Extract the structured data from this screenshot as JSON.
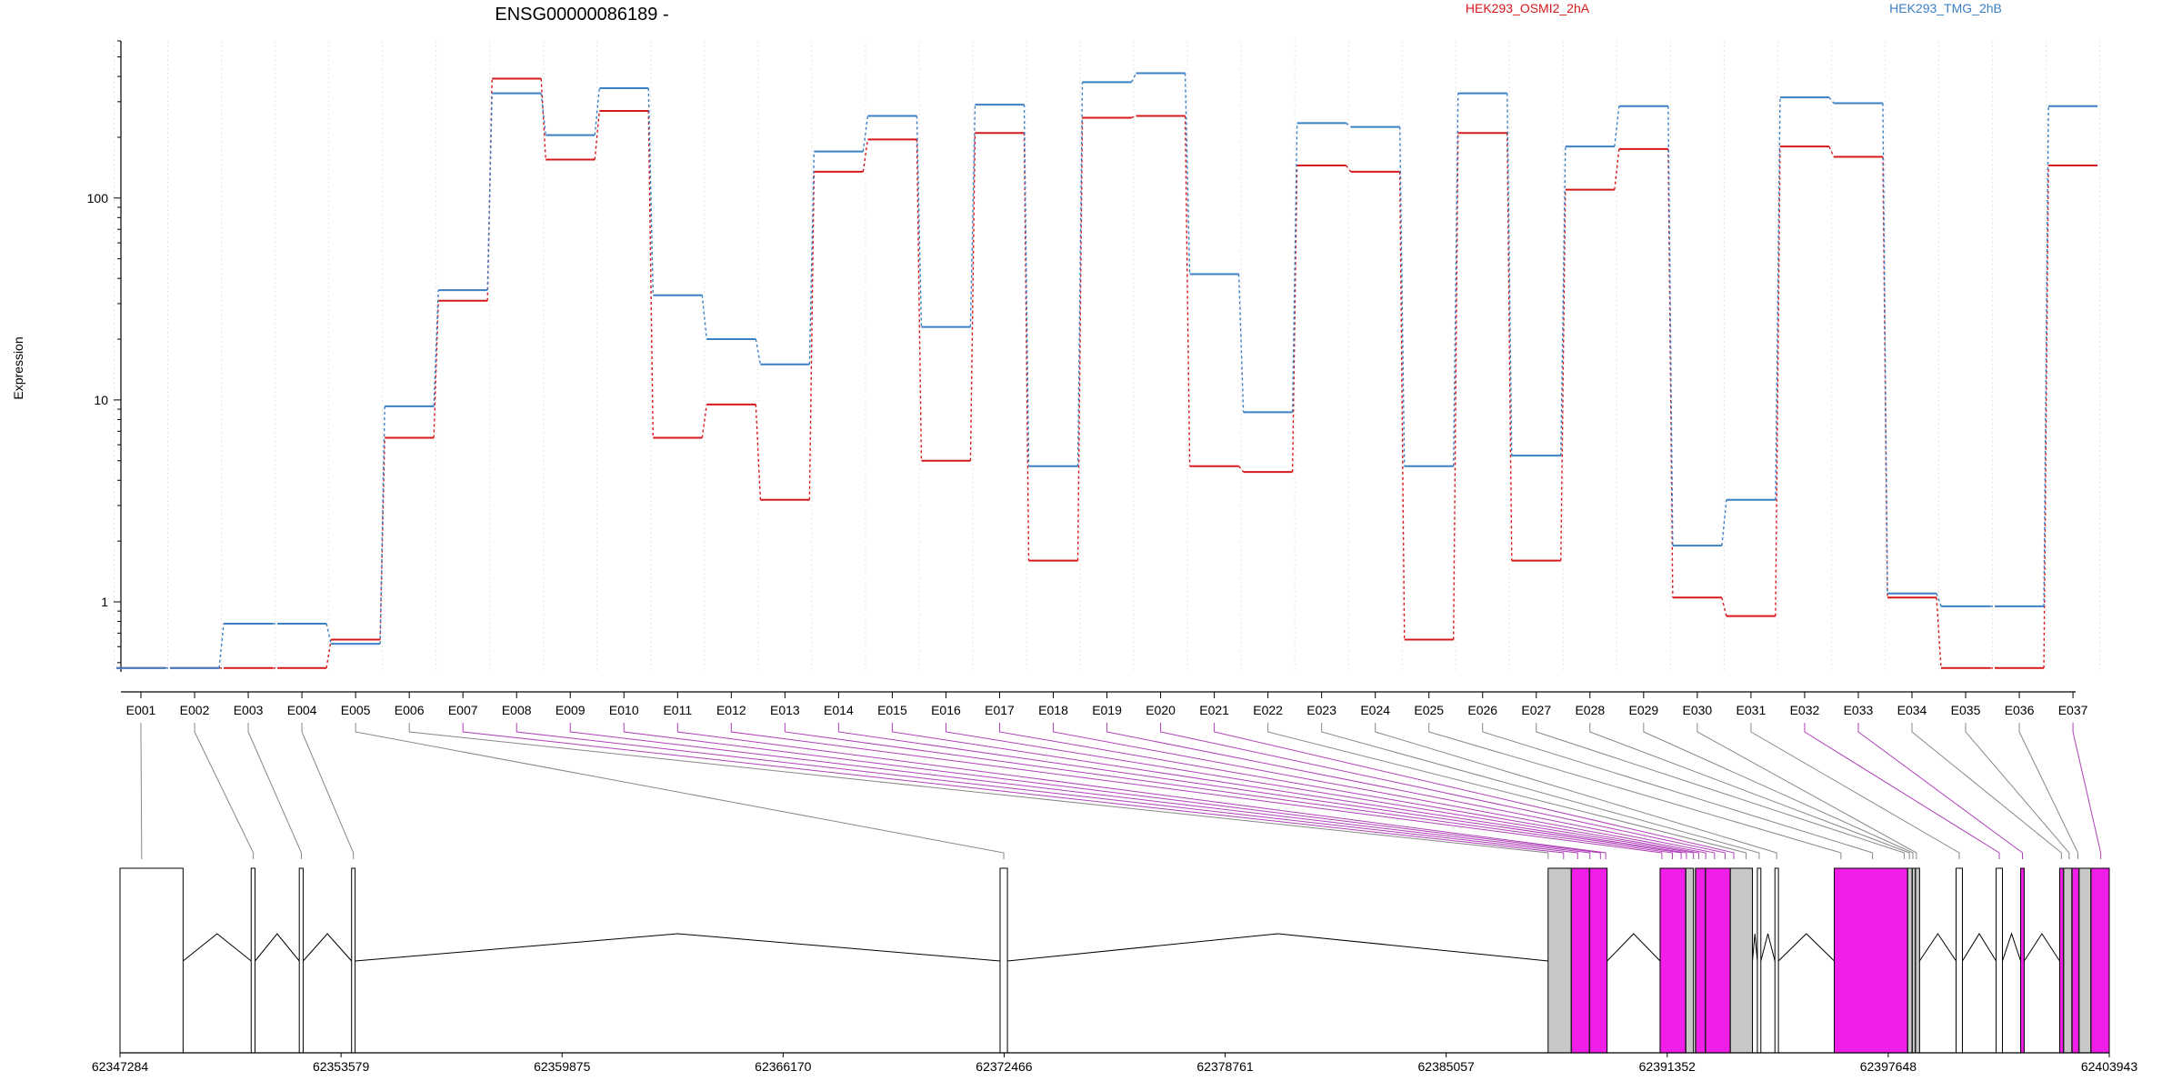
{
  "title": "ENSG00000086189 -",
  "chart_data": {
    "type": "line",
    "title": "ENSG00000086189 -",
    "ylabel": "Expression",
    "yscale": "log",
    "ylim": [
      0.45,
      600
    ],
    "yticks": [
      1,
      10,
      100
    ],
    "grid": "vertical dotted at exon boundaries",
    "exons": [
      "E001",
      "E002",
      "E003",
      "E004",
      "E005",
      "E006",
      "E007",
      "E008",
      "E009",
      "E010",
      "E011",
      "E012",
      "E013",
      "E014",
      "E015",
      "E016",
      "E017",
      "E018",
      "E019",
      "E020",
      "E021",
      "E022",
      "E023",
      "E024",
      "E025",
      "E026",
      "E027",
      "E028",
      "E029",
      "E030",
      "E031",
      "E032",
      "E033",
      "E034",
      "E035",
      "E036",
      "E037"
    ],
    "legend": "top, horizontal",
    "series": [
      {
        "name": "HEK293_OSMI2_2hA",
        "color": "#d7191c",
        "values": [
          0.47,
          0.47,
          0.47,
          0.47,
          0.65,
          6.5,
          31,
          390,
          155,
          270,
          6.5,
          9.5,
          3.2,
          135,
          195,
          5,
          210,
          1.6,
          250,
          255,
          4.7,
          4.4,
          145,
          135,
          0.65,
          210,
          1.6,
          110,
          175,
          1.05,
          0.85,
          180,
          160,
          1.05,
          0.47,
          0.47,
          145
        ]
      },
      {
        "name": "HEK293_TMG_2hB",
        "color": "#3b7fc4",
        "values": [
          0.47,
          0.47,
          0.78,
          0.78,
          0.62,
          9.3,
          35,
          330,
          205,
          350,
          33,
          20,
          15,
          170,
          255,
          23,
          290,
          4.7,
          375,
          415,
          42,
          8.7,
          235,
          225,
          4.7,
          330,
          5.3,
          180,
          285,
          1.9,
          3.2,
          315,
          295,
          1.1,
          0.95,
          0.95,
          285
        ]
      }
    ],
    "genomic_axis": {
      "tick_labels": [
        "62347284",
        "62353579",
        "62359875",
        "62366170",
        "62372466",
        "62378761",
        "62385057",
        "62391352",
        "62397648",
        "62403943"
      ],
      "range": [
        62347284,
        62403943
      ]
    },
    "gene_model": {
      "exon_fill": "#ffffff",
      "tested_fill": "#c8c8c8",
      "differential_fill": "#f01ee6",
      "introns": "tented lines between blocks",
      "connector_colors": {
        "normal": "#888888",
        "differential": "#b040b8"
      }
    }
  }
}
